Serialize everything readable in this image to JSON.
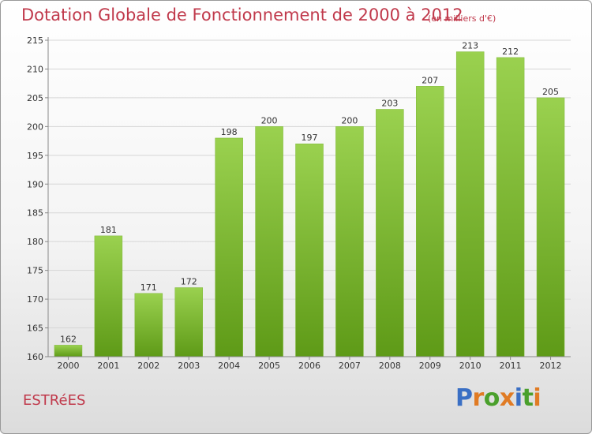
{
  "title": "Dotation Globale de Fonctionnement de 2000 à 2012",
  "subtitle": "(en milliers d'€)",
  "town": "ESTRéES",
  "logo": {
    "text": "Proxiti",
    "colors": [
      "#3a6fc4",
      "#e07b24",
      "#4aa02c",
      "#e07b24",
      "#3a6fc4",
      "#4aa02c",
      "#e07b24"
    ]
  },
  "colors": {
    "title": "#c0394b",
    "bar_top": "#9ad14f",
    "bar_bottom": "#5e9a17",
    "grid": "#d6d6d6"
  },
  "chart_data": {
    "type": "bar",
    "title": "Dotation Globale de Fonctionnement de 2000 à 2012",
    "subtitle": "(en milliers d'€)",
    "categories": [
      "2000",
      "2001",
      "2002",
      "2003",
      "2004",
      "2005",
      "2006",
      "2007",
      "2008",
      "2009",
      "2010",
      "2011",
      "2012"
    ],
    "values": [
      162,
      181,
      171,
      172,
      198,
      200,
      197,
      200,
      203,
      207,
      213,
      212,
      205
    ],
    "data_labels": [
      "162",
      "181",
      "171",
      "172",
      "198",
      "200",
      "197",
      "200",
      "203",
      "207",
      "213",
      "212",
      "205"
    ],
    "y_ticks": [
      "160",
      "165",
      "170",
      "175",
      "180",
      "185",
      "190",
      "195",
      "200",
      "205",
      "210",
      "215"
    ],
    "ylim": [
      160,
      215
    ],
    "grid": true,
    "legend": "none"
  }
}
